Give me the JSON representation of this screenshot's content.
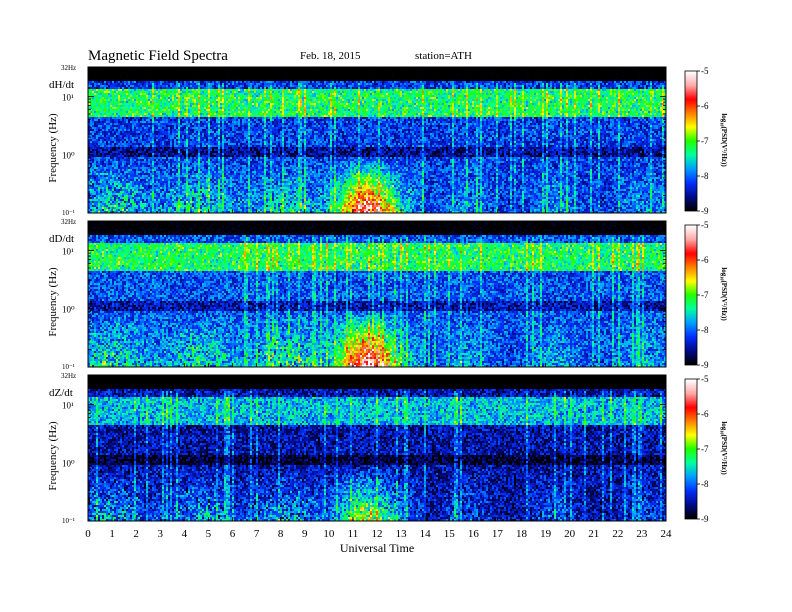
{
  "header": {
    "title": "Magnetic  Field  Spectra",
    "date": "Feb. 18, 2015",
    "station": "station=ATH"
  },
  "chart_data": {
    "type": "heatmap",
    "xlabel": "Universal Time",
    "x_ticks": [
      "0",
      "1",
      "2",
      "3",
      "4",
      "5",
      "6",
      "7",
      "8",
      "9",
      "10",
      "11",
      "12",
      "13",
      "14",
      "15",
      "16",
      "17",
      "18",
      "19",
      "20",
      "21",
      "22",
      "23",
      "24"
    ],
    "xlim": [
      0,
      24
    ],
    "ylabel": "Frequency (Hz)",
    "y_scale": "log",
    "ylim": [
      0.1,
      32
    ],
    "y_top_label": "32Hz",
    "y_tick_labels": [
      "10¹",
      "10⁰",
      "10⁻¹"
    ],
    "colorbar": {
      "label": "log₁₀(PSD(V²/Hz))",
      "ticks": [
        "-5",
        "-6",
        "-7",
        "-8",
        "-9"
      ],
      "range": [
        -9,
        -5
      ],
      "colors": [
        "#000000",
        "#000a8c",
        "#0030ff",
        "#00a0ff",
        "#00ffa0",
        "#20ff00",
        "#ffff00",
        "#ff8000",
        "#ff0000",
        "#ffa8a8",
        "#ffffff"
      ]
    },
    "panels": [
      {
        "name": "dH/dt",
        "background_level": -8.2,
        "band_level": -7.0,
        "storm_peak_hour": 11.5,
        "storm_peak_level": -5.3
      },
      {
        "name": "dD/dt",
        "background_level": -8.1,
        "band_level": -7.0,
        "storm_peak_hour": 11.5,
        "storm_peak_level": -5.2
      },
      {
        "name": "dZ/dt",
        "background_level": -8.5,
        "band_level": -7.5,
        "storm_peak_hour": 11.4,
        "storm_peak_level": -7.0
      }
    ]
  }
}
